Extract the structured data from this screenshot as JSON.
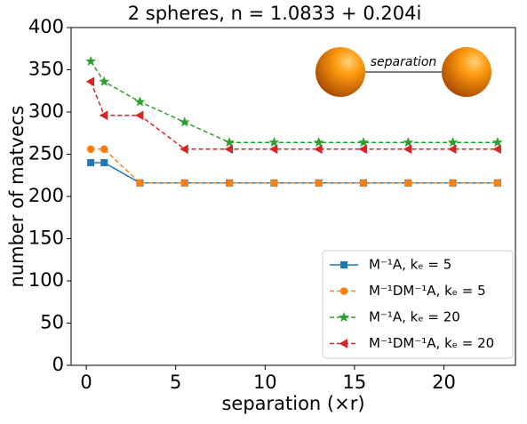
{
  "chart_data": {
    "type": "line",
    "title": "2 spheres, n = 1.0833 + 0.204i",
    "xlabel": "separation (×r)",
    "ylabel": "number of matvecs",
    "inset_label": "separation",
    "x": [
      0.25,
      1,
      3,
      5.5,
      8,
      10.5,
      13,
      15.5,
      18,
      20.5,
      23
    ],
    "series": [
      {
        "name": "M⁻¹A, kₑ = 5",
        "color": "#1f77b4",
        "marker": "square",
        "dashed": false,
        "values": [
          240,
          240,
          216,
          216,
          216,
          216,
          216,
          216,
          216,
          216,
          216
        ]
      },
      {
        "name": "M⁻¹DM⁻¹A, kₑ = 5",
        "color": "#ff7f0e",
        "marker": "circle",
        "dashed": true,
        "values": [
          256,
          256,
          216,
          216,
          216,
          216,
          216,
          216,
          216,
          216,
          216
        ]
      },
      {
        "name": "M⁻¹A, kₑ = 20",
        "color": "#2ca02c",
        "marker": "star",
        "dashed": true,
        "values": [
          360,
          336,
          312,
          288,
          264,
          264,
          264,
          264,
          264,
          264,
          264
        ]
      },
      {
        "name": "M⁻¹DM⁻¹A, kₑ = 20",
        "color": "#d62728",
        "marker": "triangle-left",
        "dashed": true,
        "values": [
          336,
          296,
          296,
          256,
          256,
          256,
          256,
          256,
          256,
          256,
          256
        ]
      }
    ],
    "xlim": [
      -0.85,
      24
    ],
    "xticks": [
      0,
      5,
      10,
      15,
      20
    ],
    "ylim": [
      0,
      400
    ],
    "yticks": [
      0,
      50,
      100,
      150,
      200,
      250,
      300,
      350,
      400
    ],
    "legend": "lower right"
  }
}
